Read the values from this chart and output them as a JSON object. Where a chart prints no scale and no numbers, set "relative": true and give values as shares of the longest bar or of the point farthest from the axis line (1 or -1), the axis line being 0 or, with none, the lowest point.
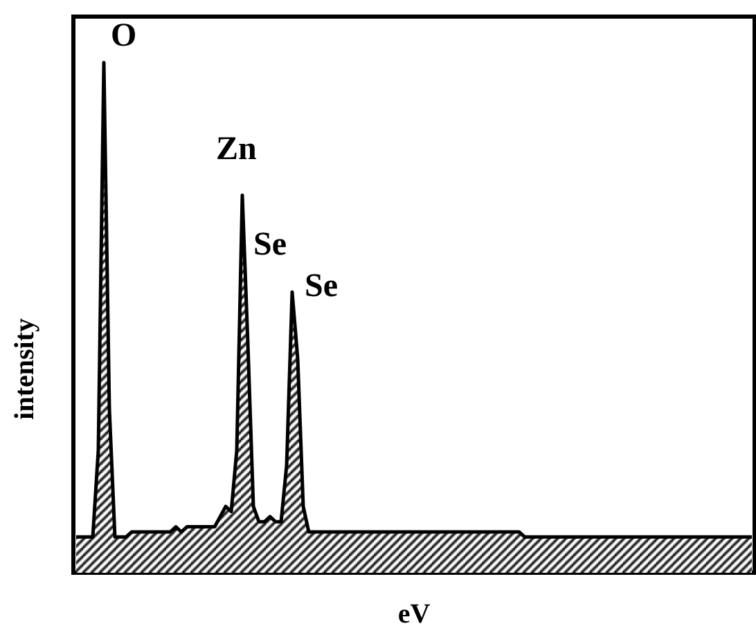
{
  "chart_data": {
    "type": "area",
    "relative": true,
    "xlabel": "eV",
    "ylabel": "intensity",
    "annotations": [
      "O",
      "Zn",
      "Se",
      "Se"
    ],
    "categories": [
      null,
      null,
      null,
      null,
      null,
      null,
      null,
      null,
      null,
      null,
      null,
      null,
      null,
      null,
      null,
      null,
      null,
      null,
      null,
      null,
      null,
      null,
      null,
      null,
      null,
      null,
      null,
      null,
      null,
      null,
      null,
      null,
      null,
      null,
      null,
      null,
      null,
      null,
      null,
      null,
      null,
      null,
      null,
      null,
      null,
      null,
      null,
      null,
      null,
      null,
      null,
      null,
      null,
      null,
      null,
      null,
      null,
      null,
      null,
      null,
      null,
      null,
      null,
      null,
      null,
      null,
      null,
      null,
      null,
      null,
      null,
      null,
      null,
      null,
      null,
      null,
      null,
      null,
      null,
      null,
      null,
      null,
      null,
      null,
      null,
      null,
      null,
      null,
      null,
      null,
      null,
      null,
      null,
      null,
      null,
      null,
      null,
      null,
      null,
      null,
      null,
      null,
      null,
      null,
      null,
      null,
      null,
      null,
      null,
      null,
      null,
      null,
      null,
      null,
      null,
      null,
      null,
      null,
      null,
      null,
      null,
      null,
      null
    ],
    "series": [
      {
        "color": "#000000",
        "values": [
          0.07,
          0.07,
          0.07,
          0.07,
          0.24,
          1,
          0.32,
          0.07,
          0.07,
          0.07,
          0.08,
          0.08,
          0.08,
          0.08,
          0.08,
          0.08,
          0.08,
          0.08,
          0.09,
          0.08,
          0.09,
          0.09,
          0.09,
          0.09,
          0.09,
          0.09,
          0.11,
          0.13,
          0.12,
          0.24,
          0.74,
          0.45,
          0.13,
          0.1,
          0.1,
          0.11,
          0.1,
          0.1,
          0.21,
          0.55,
          0.42,
          0.13,
          0.08,
          0.08,
          0.08,
          0.08,
          0.08,
          0.08,
          0.08,
          0.08,
          0.08,
          0.08,
          0.08,
          0.08,
          0.08,
          0.08,
          0.08,
          0.08,
          0.08,
          0.08,
          0.08,
          0.08,
          0.08,
          0.08,
          0.08,
          0.08,
          0.08,
          0.08,
          0.08,
          0.08,
          0.08,
          0.08,
          0.08,
          0.08,
          0.08,
          0.08,
          0.08,
          0.08,
          0.08,
          0.08,
          0.08,
          0.07,
          0.07,
          0.07,
          0.07,
          0.07,
          0.07,
          0.07,
          0.07,
          0.07,
          0.07,
          0.07,
          0.07,
          0.07,
          0.07,
          0.07,
          0.07,
          0.07,
          0.07,
          0.07,
          0.07,
          0.07,
          0.07,
          0.07,
          0.07,
          0.07,
          0.07,
          0.07,
          0.07,
          0.07,
          0.07,
          0.07,
          0.07,
          0.07,
          0.07,
          0.07,
          0.07,
          0.07,
          0.07,
          0.07,
          0.07,
          0.07,
          0.07
        ]
      }
    ]
  }
}
